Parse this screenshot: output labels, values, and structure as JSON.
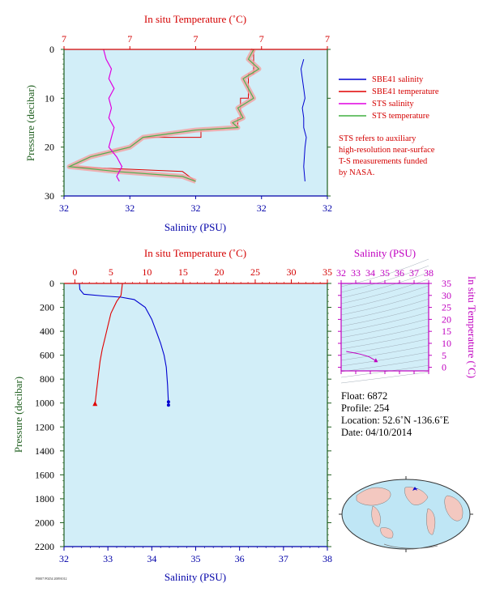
{
  "chart_data": [
    {
      "type": "line",
      "top_axis_title": "In situ Temperature (˚C)",
      "bottom_axis_title": "Salinity (PSU)",
      "left_axis_title": "Pressure (decibar)",
      "top_ticks": [
        "7",
        "7",
        "7",
        "7",
        "7"
      ],
      "bottom_ticks": [
        "32",
        "32",
        "32",
        "32",
        "32"
      ],
      "y_ticks": [
        "0",
        "10",
        "20",
        "30"
      ],
      "ylim": [
        0,
        30
      ],
      "legend": [
        {
          "label": "SBE41 salinity",
          "color": "#0000d0"
        },
        {
          "label": "SBE41 temperature",
          "color": "#e00000"
        },
        {
          "label": "STS salinity",
          "color": "#e000e0"
        },
        {
          "label": "STS temperature",
          "color": "#40b040"
        }
      ],
      "note": [
        "STS refers to auxiliary",
        "high-resolution near-surface",
        "T-S measurements funded",
        "by NASA."
      ],
      "series": [
        {
          "name": "SBE41 salinity",
          "x_frac": [
            0.91,
            0.9,
            0.905,
            0.91,
            0.915,
            0.905,
            0.91,
            0.91,
            0.92,
            0.915,
            0.91,
            0.915
          ],
          "y": [
            2,
            4,
            6,
            8,
            10,
            12,
            14,
            16,
            18,
            20,
            24,
            27
          ]
        },
        {
          "name": "STS salinity",
          "x_frac": [
            0.15,
            0.16,
            0.18,
            0.17,
            0.19,
            0.17,
            0.18,
            0.17,
            0.19,
            0.18,
            0.17,
            0.2,
            0.22,
            0.2,
            0.21
          ],
          "y": [
            0,
            2,
            4,
            6,
            8,
            10,
            12,
            14,
            16,
            18,
            20,
            22,
            24,
            26,
            27
          ]
        },
        {
          "name": "STS temperature",
          "x_frac": [
            0.72,
            0.7,
            0.74,
            0.68,
            0.7,
            0.72,
            0.66,
            0.68,
            0.64,
            0.66,
            0.5,
            0.3,
            0.25,
            0.1,
            0.02,
            0.2,
            0.45,
            0.5
          ],
          "y": [
            0,
            2,
            4,
            6,
            8,
            10,
            12,
            14,
            15,
            16,
            16.5,
            18,
            20,
            22,
            24,
            25,
            26,
            27
          ]
        },
        {
          "name": "SBE41 temperature",
          "x_frac": [
            0.72,
            0.72,
            0.7,
            0.7,
            0.67,
            0.67,
            0.66,
            0.66,
            0.52,
            0.52,
            0.3,
            0.25,
            0.1,
            0.02,
            0.45,
            0.5
          ],
          "y": [
            0,
            5,
            5,
            10,
            10,
            14,
            14,
            16,
            16.5,
            18,
            18,
            20,
            22,
            24,
            25,
            27
          ]
        }
      ]
    },
    {
      "type": "line",
      "top_axis_title": "In situ Temperature (˚C)",
      "bottom_axis_title": "Salinity (PSU)",
      "left_axis_title": "Pressure (decibar)",
      "top_ticks": [
        "0",
        "5",
        "10",
        "15",
        "20",
        "25",
        "30",
        "35"
      ],
      "bottom_ticks": [
        "32",
        "33",
        "34",
        "35",
        "36",
        "37",
        "38"
      ],
      "y_ticks": [
        "0",
        "200",
        "400",
        "600",
        "800",
        "1000",
        "1200",
        "1400",
        "1600",
        "1800",
        "2000",
        "2200"
      ],
      "xlim_temperature": [
        -1.5,
        35
      ],
      "xlim_salinity": [
        32,
        38
      ],
      "ylim": [
        0,
        2200
      ],
      "series": [
        {
          "name": "Salinity",
          "x": [
            32.35,
            32.36,
            32.45,
            32.9,
            33.3,
            33.6,
            33.85,
            34.0,
            34.1,
            34.2,
            34.28,
            34.33,
            34.36,
            34.38
          ],
          "y": [
            0,
            50,
            90,
            105,
            115,
            135,
            200,
            300,
            400,
            500,
            600,
            700,
            850,
            1010
          ]
        },
        {
          "name": "Temperature",
          "x": [
            6.6,
            6.4,
            5.8,
            5.0,
            4.6,
            4.2,
            3.8,
            3.5,
            3.3,
            3.0,
            2.8
          ],
          "y": [
            0,
            100,
            150,
            250,
            350,
            450,
            550,
            650,
            750,
            900,
            1010
          ]
        }
      ]
    },
    {
      "type": "scatter",
      "top_axis_title": "Salinity (PSU)",
      "right_axis_title": "In situ Temperature (˚C)",
      "top_ticks": [
        "32",
        "33",
        "34",
        "35",
        "36",
        "37",
        "38"
      ],
      "right_ticks": [
        "0",
        "5",
        "10",
        "15",
        "20",
        "25",
        "30",
        "35"
      ],
      "xlim": [
        32,
        38
      ],
      "ylim": [
        -1.5,
        35
      ],
      "series": [
        {
          "name": "T-S",
          "x": [
            32.35,
            32.6,
            33.0,
            33.3,
            33.6,
            33.9,
            34.1,
            34.25,
            34.38
          ],
          "y": [
            6.6,
            6.3,
            5.9,
            5.5,
            5.0,
            4.4,
            3.7,
            3.2,
            2.8
          ]
        }
      ]
    }
  ],
  "info": {
    "float": "Float:  6872",
    "profile": "Profile:  254",
    "location": "Location:  52.6˚N  -136.6˚E",
    "date": "Date:  04/10/2014"
  },
  "footer_tag": "F0007 P0254 20091012"
}
